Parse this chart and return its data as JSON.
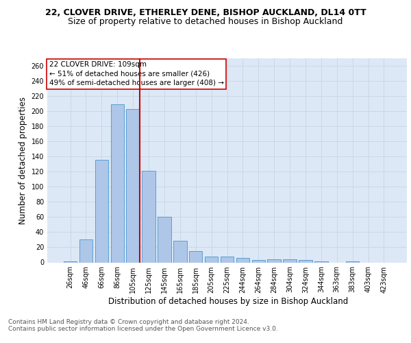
{
  "title_line1": "22, CLOVER DRIVE, ETHERLEY DENE, BISHOP AUCKLAND, DL14 0TT",
  "title_line2": "Size of property relative to detached houses in Bishop Auckland",
  "xlabel": "Distribution of detached houses by size in Bishop Auckland",
  "ylabel": "Number of detached properties",
  "categories": [
    "26sqm",
    "46sqm",
    "66sqm",
    "86sqm",
    "105sqm",
    "125sqm",
    "145sqm",
    "165sqm",
    "185sqm",
    "205sqm",
    "225sqm",
    "244sqm",
    "264sqm",
    "284sqm",
    "304sqm",
    "324sqm",
    "344sqm",
    "363sqm",
    "383sqm",
    "403sqm",
    "423sqm"
  ],
  "values": [
    1,
    30,
    136,
    209,
    203,
    121,
    60,
    29,
    15,
    8,
    8,
    6,
    3,
    4,
    4,
    3,
    1,
    0,
    1,
    0,
    0
  ],
  "bar_color": "#aec6e8",
  "bar_edge_color": "#5a9fd4",
  "grid_color": "#c8d8e8",
  "background_color": "#dce8f5",
  "vline_x_index": 4,
  "vline_color": "#cc0000",
  "annotation_text": "22 CLOVER DRIVE: 109sqm\n← 51% of detached houses are smaller (426)\n49% of semi-detached houses are larger (408) →",
  "annotation_box_color": "#ffffff",
  "annotation_box_edge": "#cc0000",
  "ylim": [
    0,
    270
  ],
  "yticks": [
    0,
    20,
    40,
    60,
    80,
    100,
    120,
    140,
    160,
    180,
    200,
    220,
    240,
    260
  ],
  "footnote": "Contains HM Land Registry data © Crown copyright and database right 2024.\nContains public sector information licensed under the Open Government Licence v3.0.",
  "title_fontsize": 9,
  "subtitle_fontsize": 9,
  "axis_label_fontsize": 8.5,
  "tick_fontsize": 7,
  "annotation_fontsize": 7.5,
  "footnote_fontsize": 6.5
}
